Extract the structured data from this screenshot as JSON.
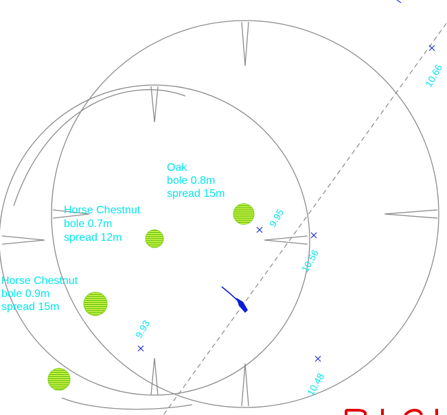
{
  "trees": [
    {
      "id": "oak",
      "species": "Oak",
      "bole": "bole 0.8m",
      "spread": "spread 15m"
    },
    {
      "id": "hc1",
      "species": "Horse Chestnut",
      "bole": "bole 0.7m",
      "spread": "spread 12m"
    },
    {
      "id": "hc2",
      "species": "Horse Chestnut",
      "bole": "bole 0.9m",
      "spread": "spread 15m"
    },
    {
      "id": "unlabelled",
      "species": "",
      "bole": "",
      "spread": ""
    }
  ],
  "levels": [
    {
      "id": "l1066",
      "value": "10.66"
    },
    {
      "id": "l995",
      "value": "9.95"
    },
    {
      "id": "l1056",
      "value": "10.56"
    },
    {
      "id": "l993",
      "value": "9.93"
    },
    {
      "id": "l1048",
      "value": "10.48"
    }
  ],
  "colors": {
    "label": "#00e5ee",
    "bole_fill": "#7fcf1f",
    "bole_hatch": "#e8ff50",
    "canopy": "#8a8a8a",
    "spot_level": "#1f2fd0",
    "north_arrow": "#0a1ed8",
    "title_fragment": "#e00000"
  }
}
